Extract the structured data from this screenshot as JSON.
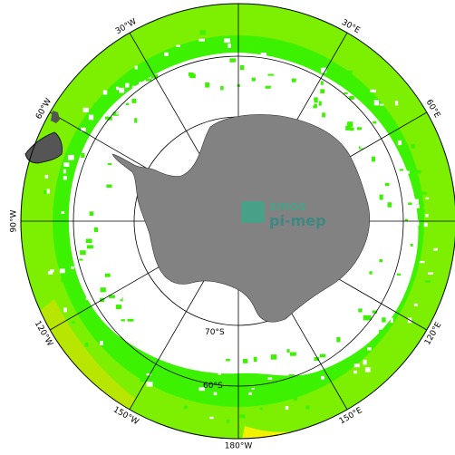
{
  "map": {
    "projection": "south-polar-stereographic",
    "colors": {
      "ocean_far": "#7cf000",
      "ocean_mid": "#3cf200",
      "ocean_yellow": "#f2f200",
      "ocean_olive": "#b8e600",
      "land": "#828282",
      "ice_gap": "#ffffff",
      "grid": "#000000"
    },
    "meridian_labels": [
      {
        "text": "30°W",
        "lon": -30
      },
      {
        "text": "30°E",
        "lon": 30
      },
      {
        "text": "60°W",
        "lon": -60
      },
      {
        "text": "60°E",
        "lon": 60
      },
      {
        "text": "90°W",
        "lon": -90
      },
      {
        "text": "120°W",
        "lon": -120
      },
      {
        "text": "120°E",
        "lon": 120
      },
      {
        "text": "150°W",
        "lon": -150
      },
      {
        "text": "150°E",
        "lon": 150
      },
      {
        "text": "180°W",
        "lon": 180
      }
    ],
    "parallel_labels": [
      {
        "text": "70°S",
        "lat": -70
      },
      {
        "text": "60°S",
        "lat": -60
      }
    ],
    "watermark": {
      "line1": "smos",
      "line2": "pi-mep",
      "logo": "smos-pi-mep-logo"
    }
  }
}
